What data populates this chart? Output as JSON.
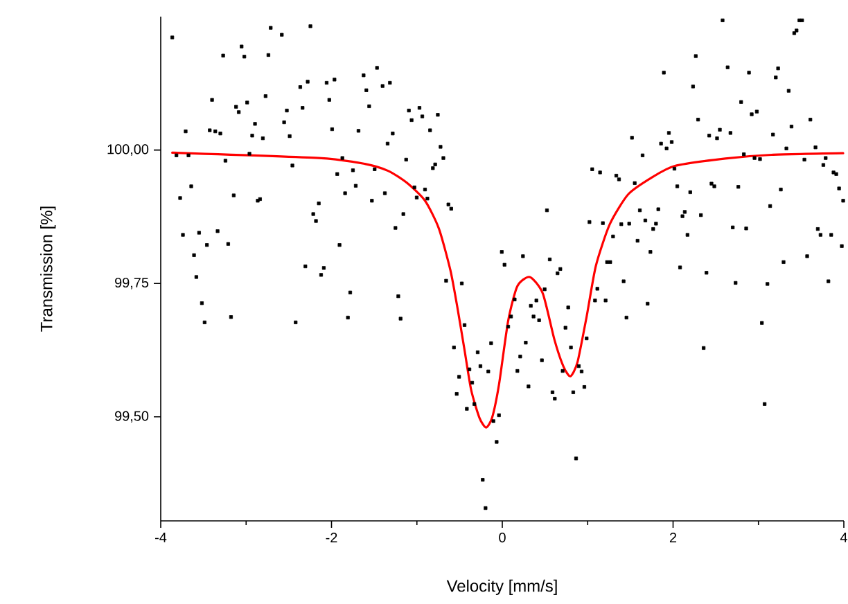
{
  "chart_data": {
    "type": "scatter",
    "xlabel": "Velocity [mm/s]",
    "ylabel": "Transmission [%]",
    "xlim": [
      -4,
      4
    ],
    "ylim": [
      99.305,
      100.25
    ],
    "xticks": [
      -4,
      {
        "value": -3,
        "label": null
      },
      -2,
      {
        "value": -1,
        "label": null
      },
      0,
      {
        "value": 1,
        "label": null
      },
      2,
      {
        "value": 3,
        "label": null
      },
      4
    ],
    "yticks": [
      {
        "value": 99.5,
        "label": "99,50"
      },
      {
        "value": 99.75,
        "label": "99,75"
      },
      {
        "value": 100,
        "label": "100,00"
      }
    ],
    "grid": false,
    "series": [
      {
        "marker": "square",
        "color": "#000000",
        "x": [
          -3.865,
          -3.708,
          -3.816,
          -3.675,
          -3.773,
          -3.643,
          -3.74,
          -3.551,
          -3.61,
          -3.459,
          -3.583,
          -3.518,
          -3.486,
          -3.399,
          -3.426,
          -3.361,
          -3.302,
          -3.269,
          -3.242,
          -3.334,
          -3.21,
          -3.177,
          -3.145,
          -3.118,
          -3.086,
          -3.053,
          -3.021,
          -2.988,
          -2.961,
          -2.929,
          -2.896,
          -2.864,
          -2.837,
          -2.804,
          -2.772,
          -2.739,
          -2.712,
          -2.582,
          -2.555,
          -2.523,
          -2.49,
          -2.458,
          -2.42,
          -2.247,
          -2.366,
          -2.339,
          -2.306,
          -2.279,
          -2.214,
          -2.182,
          -2.149,
          -2.122,
          -2.09,
          -2.057,
          -1.965,
          -2.026,
          -1.993,
          -1.873,
          -1.933,
          -1.906,
          -1.841,
          -1.749,
          -1.716,
          -1.781,
          -1.808,
          -1.684,
          -1.624,
          -1.592,
          -1.559,
          -1.467,
          -1.402,
          -1.316,
          -1.527,
          -1.495,
          -1.375,
          -1.343,
          -1.283,
          -1.251,
          -1.218,
          -1.191,
          -1.159,
          -1.126,
          -1.094,
          -1.062,
          -1.029,
          -1.002,
          -0.97,
          -0.937,
          -0.905,
          -0.877,
          -0.846,
          -0.813,
          -0.786,
          -0.755,
          -0.723,
          -0.69,
          -0.631,
          -0.598,
          -0.658,
          -0.474,
          -0.442,
          -0.566,
          -0.506,
          -0.534,
          -0.415,
          -0.385,
          -0.353,
          -0.327,
          -0.288,
          -0.256,
          -0.164,
          -0.131,
          -0.104,
          -0.066,
          -0.229,
          -0.196,
          -0.039,
          -0.006,
          0.026,
          0.069,
          0.102,
          0.145,
          0.177,
          0.21,
          0.242,
          0.275,
          0.307,
          0.334,
          0.366,
          0.399,
          0.431,
          0.464,
          0.496,
          0.523,
          0.556,
          0.588,
          0.615,
          0.647,
          0.68,
          0.707,
          0.74,
          0.772,
          0.804,
          0.831,
          0.864,
          0.896,
          0.929,
          0.961,
          0.988,
          1.021,
          1.053,
          1.086,
          1.113,
          1.145,
          1.178,
          1.21,
          1.227,
          1.264,
          1.297,
          1.335,
          1.367,
          1.394,
          1.421,
          1.454,
          1.486,
          1.519,
          1.551,
          1.584,
          1.611,
          1.643,
          1.675,
          1.702,
          1.735,
          1.767,
          1.8,
          1.827,
          1.859,
          1.892,
          1.924,
          1.951,
          1.984,
          2.016,
          2.049,
          2.082,
          2.11,
          2.137,
          2.169,
          2.201,
          2.234,
          2.266,
          2.293,
          2.326,
          2.358,
          2.391,
          2.423,
          2.45,
          2.483,
          2.515,
          2.548,
          2.58,
          2.639,
          2.672,
          2.699,
          2.732,
          2.764,
          2.797,
          2.829,
          2.856,
          2.889,
          2.921,
          2.954,
          2.981,
          3.018,
          3.04,
          3.072,
          3.105,
          3.137,
          3.17,
          3.203,
          3.23,
          3.262,
          3.294,
          3.327,
          3.354,
          3.387,
          3.419,
          3.446,
          3.479,
          3.511,
          3.538,
          3.57,
          3.608,
          3.668,
          3.695,
          3.727,
          3.76,
          3.787,
          3.819,
          3.852,
          3.879,
          3.911,
          3.944,
          3.976,
          3.992
        ],
        "values": [
          100.211,
          100.035,
          99.99,
          99.99,
          99.91,
          99.932,
          99.841,
          99.845,
          99.803,
          99.822,
          99.762,
          99.713,
          99.677,
          100.094,
          100.037,
          100.035,
          100.031,
          100.177,
          99.98,
          99.848,
          99.824,
          99.687,
          99.915,
          100.081,
          100.071,
          100.194,
          100.175,
          100.089,
          99.993,
          100.027,
          100.049,
          99.905,
          99.908,
          100.022,
          100.101,
          100.178,
          100.229,
          100.216,
          100.052,
          100.074,
          100.026,
          99.971,
          99.677,
          100.232,
          100.118,
          100.079,
          99.782,
          100.128,
          99.88,
          99.867,
          99.9,
          99.766,
          99.779,
          100.126,
          100.132,
          100.094,
          100.039,
          99.985,
          99.955,
          99.822,
          99.919,
          99.962,
          99.933,
          99.733,
          99.686,
          100.036,
          100.14,
          100.112,
          100.082,
          100.154,
          100.12,
          100.126,
          99.905,
          99.964,
          99.919,
          100.012,
          100.031,
          99.854,
          99.726,
          99.684,
          99.88,
          99.982,
          100.074,
          100.056,
          99.93,
          99.911,
          100.079,
          100.063,
          99.926,
          99.909,
          100.037,
          99.966,
          99.973,
          100.066,
          100.006,
          99.985,
          99.898,
          99.89,
          99.755,
          99.75,
          99.672,
          99.63,
          99.575,
          99.543,
          99.515,
          99.589,
          99.564,
          99.524,
          99.621,
          99.595,
          99.585,
          99.638,
          99.492,
          99.453,
          99.382,
          99.329,
          99.503,
          99.809,
          99.785,
          99.669,
          99.688,
          99.72,
          99.586,
          99.613,
          99.801,
          99.639,
          99.557,
          99.708,
          99.688,
          99.718,
          99.681,
          99.606,
          99.739,
          99.887,
          99.795,
          99.546,
          99.534,
          99.769,
          99.777,
          99.586,
          99.667,
          99.705,
          99.63,
          99.546,
          99.422,
          99.595,
          99.585,
          99.556,
          99.647,
          99.865,
          99.964,
          99.718,
          99.74,
          99.958,
          99.863,
          99.718,
          99.79,
          99.79,
          99.838,
          99.952,
          99.945,
          99.861,
          99.754,
          99.686,
          99.862,
          100.023,
          99.938,
          99.83,
          99.887,
          99.99,
          99.868,
          99.712,
          99.809,
          99.852,
          99.862,
          99.889,
          100.012,
          100.145,
          100.003,
          100.032,
          100.015,
          99.965,
          99.932,
          99.78,
          99.876,
          99.884,
          99.841,
          99.921,
          100.119,
          100.176,
          100.057,
          99.878,
          99.629,
          99.77,
          100.027,
          99.937,
          99.932,
          100.022,
          100.038,
          100.243,
          100.155,
          100.032,
          99.855,
          99.751,
          99.931,
          100.09,
          99.992,
          99.853,
          100.145,
          100.067,
          99.985,
          100.072,
          99.983,
          99.676,
          99.524,
          99.749,
          99.895,
          100.029,
          100.136,
          100.153,
          99.926,
          99.79,
          100.003,
          100.111,
          100.044,
          100.219,
          100.224,
          100.243,
          100.243,
          99.982,
          99.801,
          100.057,
          100.005,
          99.852,
          99.841,
          99.972,
          99.985,
          99.754,
          99.841,
          99.958,
          99.955,
          99.928,
          99.82,
          99.905
        ]
      },
      {
        "type": "line",
        "marker": "none",
        "color": "#ff0000",
        "x": [
          -3.865,
          -2.149,
          -1.608,
          -1.338,
          -1.121,
          -0.905,
          -0.743,
          -0.608,
          -0.526,
          -0.445,
          -0.364,
          -0.267,
          -0.191,
          -0.12,
          -0.039,
          0.069,
          0.177,
          0.323,
          0.475,
          0.61,
          0.717,
          0.798,
          0.88,
          0.988,
          1.096,
          1.259,
          1.475,
          1.746,
          2.016,
          2.612,
          3.153,
          3.992
        ],
        "values": [
          99.995,
          99.985,
          99.974,
          99.961,
          99.939,
          99.905,
          99.853,
          99.775,
          99.705,
          99.628,
          99.55,
          99.498,
          99.48,
          99.498,
          99.56,
          99.68,
          99.745,
          99.762,
          99.731,
          99.645,
          99.594,
          99.576,
          99.602,
          99.688,
          99.783,
          99.861,
          99.917,
          99.948,
          99.97,
          99.984,
          99.991,
          99.994
        ]
      }
    ]
  }
}
